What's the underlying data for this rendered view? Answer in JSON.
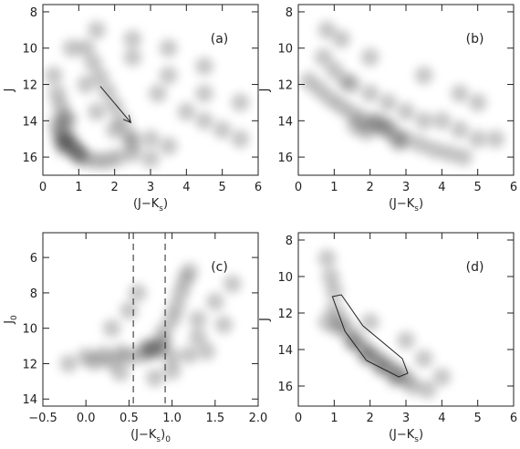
{
  "chart_data": [
    {
      "type": "scatter",
      "label": "(a)",
      "color": "#000000",
      "xlabel": [
        "(J−K",
        "s",
        ")"
      ],
      "ylabel": [
        "J"
      ],
      "xlim": [
        0,
        6
      ],
      "ylim": [
        17,
        7.6
      ],
      "xticks": [
        0,
        1,
        2,
        3,
        4,
        5,
        6
      ],
      "yticks": [
        8,
        10,
        12,
        14,
        16
      ],
      "x": [
        0.5,
        0.6,
        0.7,
        0.8,
        0.5,
        0.9,
        0.6,
        1.0,
        0.4,
        0.7,
        0.3,
        0.4,
        0.5,
        0.6,
        1.2,
        1.4,
        1.6,
        1.8,
        2.0,
        2.2,
        2.4,
        1.0,
        1.2,
        1.5,
        1.8,
        2.1,
        2.5,
        3.0,
        1.5,
        2.0,
        2.5,
        3.0,
        3.5,
        3.2,
        4.0,
        4.5,
        5.0,
        5.5,
        2.5,
        3.5,
        4.5,
        5.5,
        1.5,
        2.5,
        3.5,
        4.5,
        0.8,
        1.2
      ],
      "y": [
        15.0,
        15.2,
        14.9,
        15.3,
        14.6,
        15.6,
        15.5,
        15.8,
        14.2,
        14.0,
        11.5,
        12.5,
        13.2,
        13.8,
        10.0,
        10.8,
        11.6,
        12.4,
        13.2,
        14.0,
        14.8,
        15.9,
        16.1,
        16.2,
        16.2,
        16.0,
        15.8,
        16.1,
        13.5,
        14.5,
        15.2,
        15.0,
        15.4,
        12.5,
        13.5,
        14.0,
        14.5,
        15.0,
        10.5,
        11.5,
        12.5,
        13.0,
        9.0,
        9.5,
        10.0,
        11.0,
        10.0,
        12.0
      ],
      "arrow": {
        "x": [
          1.6,
          2.45
        ],
        "y": [
          12.1,
          14.1
        ]
      }
    },
    {
      "type": "scatter",
      "label": "(b)",
      "color": "#000000",
      "xlabel": [
        "(J−K",
        "s",
        ")"
      ],
      "ylabel": [
        "J"
      ],
      "xlim": [
        0,
        6
      ],
      "ylim": [
        17,
        7.6
      ],
      "xticks": [
        0,
        1,
        2,
        3,
        4,
        5,
        6
      ],
      "yticks": [
        8,
        10,
        12,
        14,
        16
      ],
      "x": [
        0.3,
        0.6,
        0.9,
        1.2,
        1.5,
        1.8,
        2.1,
        2.4,
        2.7,
        3.0,
        3.4,
        3.8,
        4.2,
        4.6,
        1.6,
        1.9,
        2.2,
        2.5,
        2.8,
        0.7,
        1.0,
        1.3,
        1.5,
        2.0,
        2.5,
        3.0,
        3.5,
        4.0,
        4.5,
        5.0,
        5.5,
        3.5,
        4.5,
        5.0,
        0.8,
        1.2,
        2.0
      ],
      "y": [
        11.8,
        12.3,
        12.8,
        13.2,
        13.6,
        13.9,
        14.2,
        14.5,
        14.8,
        15.0,
        15.3,
        15.6,
        15.8,
        16.0,
        14.3,
        14.6,
        14.0,
        14.3,
        15.2,
        10.5,
        11.2,
        11.8,
        12.0,
        12.5,
        13.0,
        13.5,
        14.0,
        14.0,
        14.5,
        15.0,
        15.0,
        11.5,
        12.5,
        13.0,
        9.0,
        9.5,
        10.5
      ]
    },
    {
      "type": "scatter",
      "label": "(c)",
      "color": "#000000",
      "xlabel": [
        "(J−K",
        "s",
        ")",
        "0"
      ],
      "ylabel": [
        "J",
        "0"
      ],
      "xlim": [
        -0.5,
        2.0
      ],
      "ylim": [
        14.4,
        4.6
      ],
      "xticks": [
        {
          "value": -0.5,
          "label": "−0.5"
        },
        {
          "value": 0,
          "label": "0.0"
        },
        0.5,
        {
          "value": 1,
          "label": "1.0"
        },
        1.5,
        {
          "value": 2,
          "label": "2.0"
        }
      ],
      "yticks": [
        6,
        8,
        10,
        12,
        14
      ],
      "x": [
        0.7,
        0.75,
        0.8,
        0.85,
        0.65,
        0.9,
        0.9,
        1.0,
        1.05,
        1.1,
        1.15,
        1.2,
        0.0,
        0.2,
        0.4,
        0.5,
        1.0,
        1.2,
        1.4,
        -0.2,
        0.1,
        0.3,
        1.3,
        1.5,
        0.3,
        0.5,
        0.6,
        1.3,
        1.6,
        1.7,
        0.4,
        0.8,
        1.0
      ],
      "y": [
        11.2,
        11.0,
        11.3,
        11.1,
        11.5,
        10.8,
        10.2,
        9.5,
        8.8,
        8.0,
        7.3,
        6.8,
        11.6,
        11.5,
        11.4,
        11.6,
        11.6,
        11.5,
        11.3,
        12.0,
        11.9,
        11.9,
        9.5,
        8.5,
        10.0,
        9.0,
        8.0,
        10.5,
        9.8,
        7.5,
        12.5,
        12.8,
        12.4
      ],
      "vlines": [
        0.55,
        0.92
      ]
    },
    {
      "type": "scatter",
      "label": "(d)",
      "color": "#000000",
      "xlabel": [
        "(J−K",
        "s",
        ")"
      ],
      "ylabel": [
        "J"
      ],
      "xlim": [
        0,
        6
      ],
      "ylim": [
        17.1,
        7.6
      ],
      "xticks": [
        0,
        1,
        2,
        3,
        4,
        5,
        6
      ],
      "yticks": [
        8,
        10,
        12,
        14,
        16
      ],
      "x": [
        1.0,
        1.2,
        1.4,
        1.6,
        1.8,
        2.0,
        2.2,
        2.4,
        2.6,
        2.8,
        3.0,
        1.1,
        1.5,
        1.9,
        2.3,
        2.7,
        3.2,
        3.6,
        0.8,
        0.9,
        1.0,
        0.8,
        2.0,
        3.0,
        3.5,
        4.0
      ],
      "y": [
        11.8,
        12.4,
        13.0,
        13.5,
        13.9,
        14.2,
        14.5,
        14.8,
        15.1,
        15.3,
        15.6,
        12.8,
        13.6,
        14.4,
        15.0,
        15.6,
        16.0,
        16.2,
        9.0,
        10.0,
        10.8,
        12.5,
        12.5,
        13.5,
        14.5,
        15.5
      ],
      "polygon": {
        "x": [
          0.95,
          1.2,
          1.8,
          2.9,
          3.05,
          2.8,
          1.9,
          1.3
        ],
        "y": [
          11.1,
          11.0,
          12.7,
          14.5,
          15.3,
          15.5,
          14.6,
          13.0
        ]
      }
    }
  ]
}
